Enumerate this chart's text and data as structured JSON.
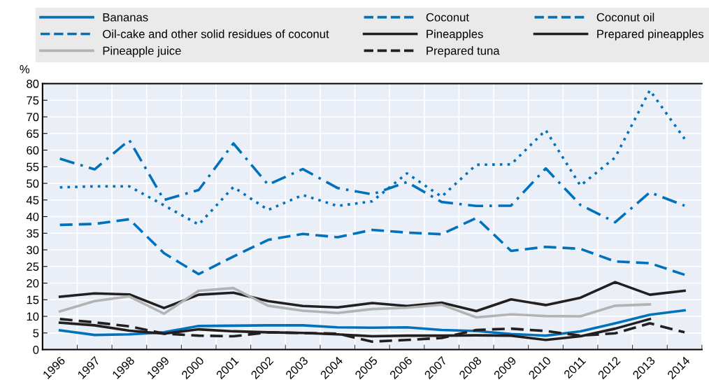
{
  "chart_data": {
    "type": "line",
    "ylabel": "%",
    "categories": [
      "1996",
      "1997",
      "1998",
      "1999",
      "2000",
      "2001",
      "2002",
      "2003",
      "2004",
      "2005",
      "2006",
      "2007",
      "2008",
      "2009",
      "2010",
      "2011",
      "2012",
      "2013",
      "2014"
    ],
    "ylim": [
      0,
      80
    ],
    "yticks": [
      0,
      5,
      10,
      15,
      20,
      25,
      30,
      35,
      40,
      45,
      50,
      55,
      60,
      65,
      70,
      75,
      80
    ],
    "grid": true,
    "legend": "top",
    "marker": "none",
    "series": [
      {
        "name": "Bananas",
        "color": "#0072bc",
        "line_style": "solid",
        "values": [
          5.8,
          4.4,
          4.6,
          5.2,
          7.1,
          7.2,
          7.3,
          7.3,
          6.7,
          6.6,
          6.7,
          5.9,
          5.6,
          4.7,
          4.2,
          5.5,
          7.9,
          10.5,
          11.8
        ]
      },
      {
        "name": "Coconut",
        "color": "#0072bc",
        "line_style": "dashed",
        "values": [
          37.5,
          37.8,
          39.2,
          29,
          22.7,
          28,
          33,
          34.8,
          33.8,
          36,
          35.2,
          34.7,
          39.6,
          29.7,
          30.9,
          30.3,
          26.5,
          26,
          22.5
        ]
      },
      {
        "name": "Coconut oil",
        "color": "#0072bc",
        "line_style": "dashdot",
        "values": [
          57.4,
          54.2,
          63,
          45,
          48,
          62,
          49.6,
          54.3,
          48.6,
          46.7,
          50.4,
          44.4,
          43.2,
          43.3,
          54.5,
          43.5,
          38.3,
          47.3,
          43.3
        ]
      },
      {
        "name": "Oil-cake and other solid residues of coconut",
        "color": "#0072bc",
        "line_style": "dotted",
        "values": [
          48.8,
          49.1,
          49.1,
          43.4,
          37.6,
          48.9,
          42,
          46.5,
          43.2,
          44.6,
          53,
          46,
          55.6,
          55.7,
          66,
          49.3,
          57.8,
          78,
          63.4
        ]
      },
      {
        "name": "Pineapples",
        "color": "#231f20",
        "line_style": "solid",
        "values": [
          8.1,
          7.3,
          5.7,
          4.8,
          6.1,
          5.5,
          5.2,
          5.0,
          4.6,
          4.0,
          4.2,
          4.2,
          4.3,
          4.2,
          2.9,
          4.0,
          6.3,
          9.2,
          null
        ]
      },
      {
        "name": "Prepared pineapples",
        "color": "#231f20",
        "line_style": "solid",
        "values": [
          15.9,
          16.9,
          16.6,
          12.5,
          16.5,
          17.1,
          14.6,
          13.1,
          12.7,
          14,
          13.1,
          14.1,
          11.6,
          15.1,
          13.4,
          15.6,
          20.3,
          16.5,
          17.7
        ]
      },
      {
        "name": "Pineapple juice",
        "color": "#b3b3b3",
        "line_style": "solid",
        "values": [
          11.5,
          14.6,
          16,
          10.8,
          17.7,
          18.5,
          13.2,
          11.7,
          11,
          12.2,
          12.6,
          13.5,
          9.7,
          10.6,
          10.1,
          10,
          13.2,
          13.6,
          null
        ]
      },
      {
        "name": "Prepared tuna",
        "color": "#231f20",
        "line_style": "dashed",
        "values": [
          9.2,
          8.2,
          7.0,
          4.8,
          4.2,
          4.0,
          5.2,
          5.0,
          4.8,
          2.4,
          2.9,
          3.5,
          5.9,
          6.3,
          5.6,
          4.2,
          4.9,
          7.9,
          5.2
        ]
      }
    ]
  }
}
